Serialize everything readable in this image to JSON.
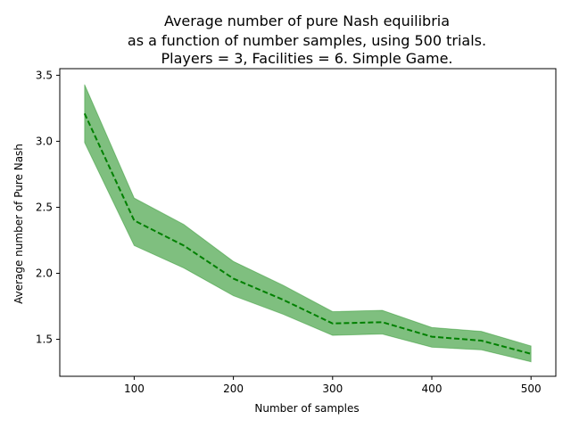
{
  "chart_data": {
    "type": "line",
    "title": [
      "Average number of pure Nash equilibria",
      "as a function of number samples, using 500 trials.",
      "Players = 3, Facilities = 6. Simple Game."
    ],
    "xlabel": "Number of samples",
    "ylabel": "Average number of Pure Nash",
    "xlim": [
      25,
      525
    ],
    "ylim": [
      1.22,
      3.55
    ],
    "xticks": [
      100,
      200,
      300,
      400,
      500
    ],
    "yticks": [
      1.5,
      2.0,
      2.5,
      3.0,
      3.5
    ],
    "x": [
      50,
      100,
      150,
      200,
      250,
      300,
      350,
      400,
      450,
      500
    ],
    "series": [
      {
        "values": [
          3.21,
          2.4,
          2.21,
          1.96,
          1.8,
          1.62,
          1.63,
          1.52,
          1.49,
          1.39
        ],
        "lower": [
          2.99,
          2.21,
          2.04,
          1.83,
          1.69,
          1.53,
          1.54,
          1.44,
          1.42,
          1.33
        ],
        "upper": [
          3.43,
          2.57,
          2.37,
          2.09,
          1.91,
          1.71,
          1.72,
          1.59,
          1.56,
          1.45
        ],
        "line_color": "#008000",
        "line_style": "dashed",
        "band_color": "#008000",
        "band_opacity": 0.5
      }
    ],
    "grid": false,
    "legend": "none"
  }
}
